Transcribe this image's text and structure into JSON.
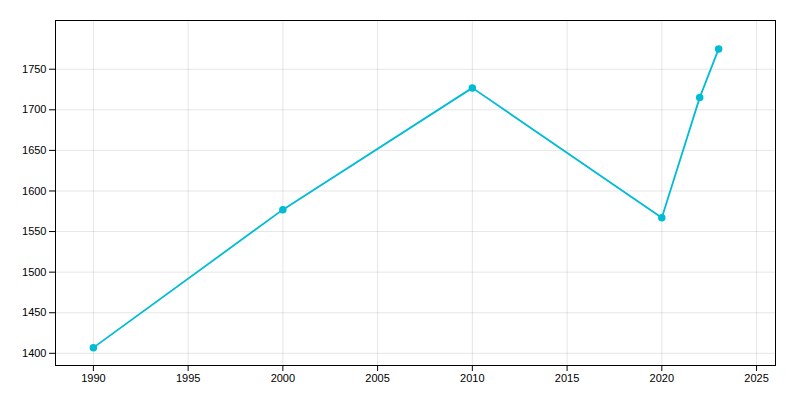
{
  "chart_data": {
    "type": "line",
    "x": [
      1990,
      2000,
      2010,
      2020,
      2022,
      2023
    ],
    "values": [
      1407,
      1577,
      1727,
      1567,
      1715,
      1775
    ],
    "color": "#00BCD4",
    "marker": "circle",
    "xlim": [
      1988,
      2026
    ],
    "xticks": [
      1990,
      1995,
      2000,
      2005,
      2010,
      2015,
      2020,
      2025
    ],
    "ylim": [
      1385,
      1810
    ],
    "yticks": [
      1400,
      1450,
      1500,
      1550,
      1600,
      1650,
      1700,
      1750
    ],
    "grid": true
  }
}
